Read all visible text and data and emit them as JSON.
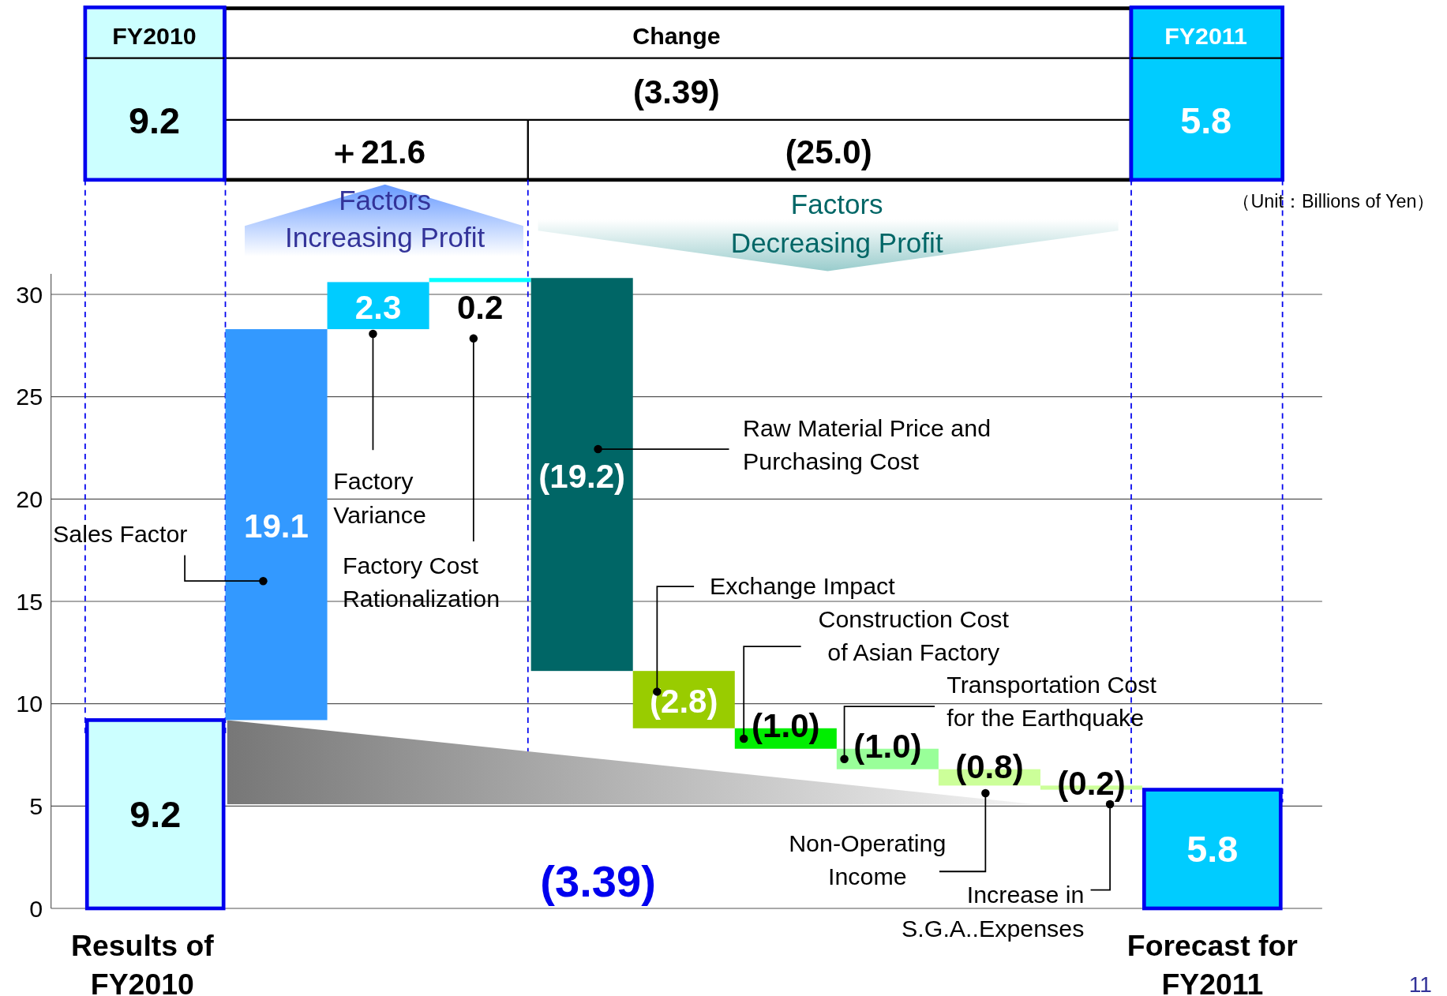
{
  "chart_data": {
    "type": "bar",
    "categories": [
      "Results of FY2010",
      null,
      null,
      null,
      null,
      null,
      null,
      null,
      null,
      null,
      "Forecast for FY2011"
    ],
    "values": [
      9.2,
      19.1,
      2.3,
      0.2,
      -19.2,
      -2.8,
      -1.0,
      -1.0,
      -0.8,
      -0.2,
      5.8
    ],
    "base": [
      0,
      9.2,
      28.3,
      30.6,
      30.8,
      11.6,
      8.8,
      7.8,
      6.8,
      6.0,
      0
    ],
    "colors": [
      "#ccffff",
      "#3399ff",
      "#00ccff",
      "#00ffff",
      "#006666",
      "#99cc00",
      "#00ee00",
      "#99ff99",
      "#ccff99",
      "#ccff99",
      "#00ccff"
    ],
    "value_labels": [
      "9.2",
      "19.1",
      "2.3",
      "0.2",
      "(19.2)",
      "(2.8)",
      "(1.0)",
      "(1.0)",
      "(0.8)",
      "(0.2)",
      "5.8"
    ],
    "ylim": [
      0,
      31
    ],
    "yticks": [
      0,
      5,
      10,
      15,
      20,
      25,
      30
    ],
    "grid": "y",
    "annotations": [
      "FY2010",
      "9.2",
      "Change",
      "(3.39)",
      "＋21.6",
      "(25.0)",
      "FY2011",
      "5.8",
      "Factors\nIncreasing Profit",
      "Factors\nDecreasing Profit",
      "（Unit：Billions of Yen）",
      "Sales Factor",
      "Factory\nVariance",
      "Factory Cost\nRationalization",
      "Raw Material Price and\nPurchasing Cost",
      "Exchange Impact",
      "Construction Cost\nof Asian Factory",
      "Transportation Cost\nfor the Earthquake",
      "Non-Operating\nIncome",
      "Increase in\nS.G.A..Expenses",
      "(3.39)",
      "11"
    ]
  }
}
